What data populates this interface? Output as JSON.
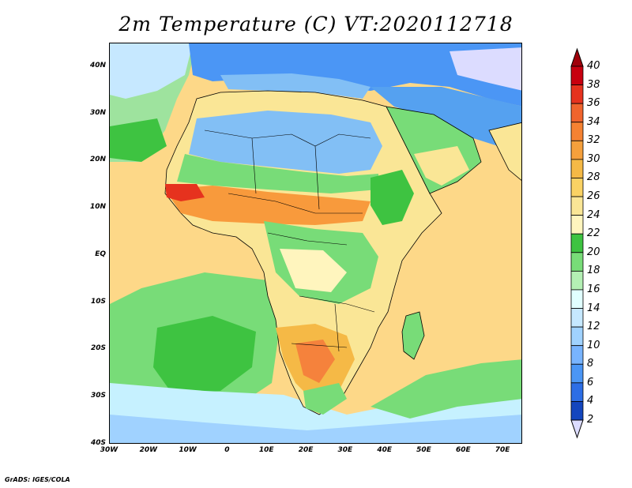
{
  "title": "2m Temperature (C) VT:2020112718",
  "credit": "GrADS: IGES/COLA",
  "map": {
    "projection": "latlon",
    "lon_range": [
      -30,
      75
    ],
    "lat_range": [
      -40,
      45
    ],
    "lat_ticks": [
      "40N",
      "30N",
      "20N",
      "10N",
      "EQ",
      "10S",
      "20S",
      "30S",
      "40S"
    ],
    "lon_ticks": [
      "30W",
      "20W",
      "10W",
      "0",
      "10E",
      "20E",
      "30E",
      "40E",
      "50E",
      "60E",
      "70E"
    ],
    "lat_tick_values": [
      40,
      30,
      20,
      10,
      0,
      -10,
      -20,
      -30,
      -40
    ],
    "lon_tick_values": [
      -30,
      -20,
      -10,
      0,
      10,
      20,
      30,
      40,
      50,
      60,
      70
    ],
    "regions": [
      {
        "name": "ocean-warm",
        "color": "#fdd888"
      },
      {
        "name": "africa-land",
        "color": "#fdd888"
      },
      {
        "name": "sahara-cool",
        "color": "#82bff5"
      },
      {
        "name": "sahel-hot",
        "color": "#f89a3c"
      },
      {
        "name": "mediterranean",
        "color": "#55a1f0"
      },
      {
        "name": "south-atlantic",
        "color": "#3ec341"
      },
      {
        "name": "southern-ocean",
        "color": "#c6f1ff"
      }
    ]
  },
  "colorbar": {
    "labels": [
      "40",
      "38",
      "36",
      "34",
      "32",
      "30",
      "28",
      "26",
      "24",
      "22",
      "20",
      "18",
      "16",
      "14",
      "12",
      "10",
      "8",
      "6",
      "4",
      "2"
    ],
    "colors": [
      "#a0000a",
      "#c8000f",
      "#e6321e",
      "#f0642d",
      "#f58232",
      "#f5a03c",
      "#f5b946",
      "#fad264",
      "#fae696",
      "#fff5be",
      "#3ec341",
      "#78dc78",
      "#b4f0b4",
      "#e1ffff",
      "#c6e8ff",
      "#a0d2ff",
      "#78b4ff",
      "#4b96f5",
      "#2d6ee6",
      "#1446be",
      "#0a1e82"
    ],
    "min_color": "#dcdcff",
    "max_color": "#a0000a"
  }
}
